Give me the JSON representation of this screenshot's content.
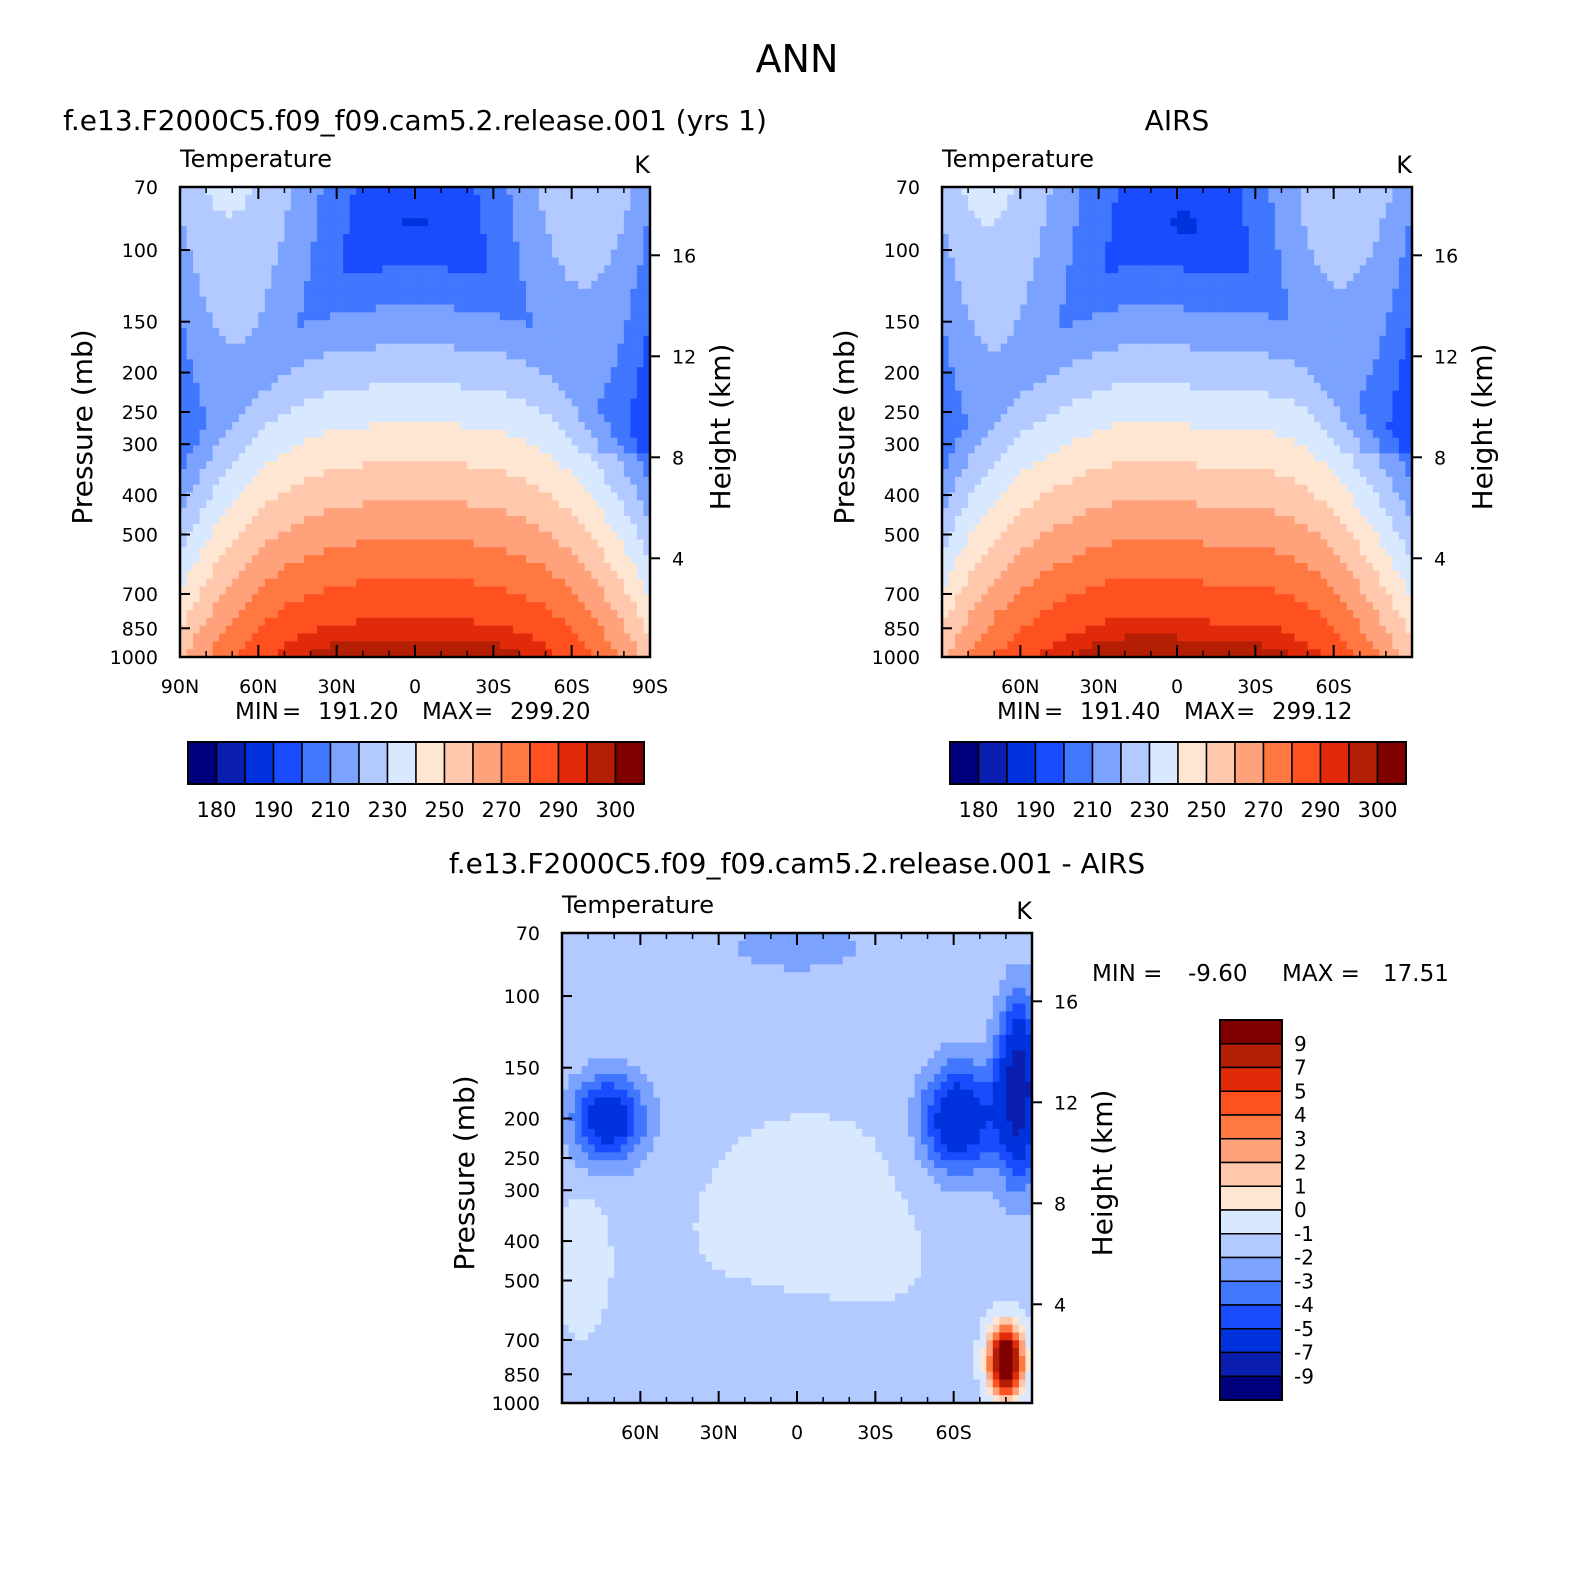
{
  "figure": {
    "title": "ANN"
  },
  "chart_data": [
    {
      "type": "heatmap",
      "panel_title": "f.e13.F2000C5.f09_f09.cam5.2.release.001 (yrs 1)",
      "variable": "Temperature",
      "units": "K",
      "ylabel": "Pressure (mb)",
      "ylabel_right": "Height (km)",
      "y_ticks": [
        "70",
        "100",
        "150",
        "200",
        "250",
        "300",
        "400",
        "500",
        "700",
        "850",
        "1000"
      ],
      "y_right_ticks": [
        "16",
        "12",
        "8",
        "4"
      ],
      "x_ticks": [
        "90N",
        "60N",
        "30N",
        "0",
        "30S",
        "60S",
        "90S"
      ],
      "min_label": "MIN",
      "min": "191.20",
      "max_label": "MAX",
      "max": "299.20",
      "contour_levels": [
        180,
        185,
        190,
        200,
        210,
        220,
        230,
        240,
        250,
        260,
        270,
        280,
        290,
        295,
        300
      ],
      "colorbar_labels": [
        "180",
        "190",
        "210",
        "230",
        "250",
        "270",
        "290",
        "300"
      ]
    },
    {
      "type": "heatmap",
      "panel_title": "AIRS",
      "variable": "Temperature",
      "units": "K",
      "ylabel": "Pressure (mb)",
      "ylabel_right": "Height (km)",
      "y_ticks": [
        "70",
        "100",
        "150",
        "200",
        "250",
        "300",
        "400",
        "500",
        "700",
        "850",
        "1000"
      ],
      "y_right_ticks": [
        "16",
        "12",
        "8",
        "4"
      ],
      "x_ticks": [
        "60N",
        "30N",
        "0",
        "30S",
        "60S"
      ],
      "min_label": "MIN",
      "min": "191.40",
      "max_label": "MAX",
      "max": "299.12",
      "contour_levels": [
        180,
        185,
        190,
        200,
        210,
        220,
        230,
        240,
        250,
        260,
        270,
        280,
        290,
        295,
        300
      ],
      "colorbar_labels": [
        "180",
        "190",
        "210",
        "230",
        "250",
        "270",
        "290",
        "300"
      ]
    },
    {
      "type": "heatmap",
      "panel_title": "f.e13.F2000C5.f09_f09.cam5.2.release.001 - AIRS",
      "variable": "Temperature",
      "units": "K",
      "ylabel": "Pressure (mb)",
      "ylabel_right": "Height (km)",
      "y_ticks": [
        "70",
        "100",
        "150",
        "200",
        "250",
        "300",
        "400",
        "500",
        "700",
        "850",
        "1000"
      ],
      "y_right_ticks": [
        "16",
        "12",
        "8",
        "4"
      ],
      "x_ticks": [
        "60N",
        "30N",
        "0",
        "30S",
        "60S"
      ],
      "min_label": "MIN =",
      "min": "-9.60",
      "max_label": "MAX =",
      "max": "17.51",
      "contour_levels": [
        -9,
        -7,
        -5,
        -4,
        -3,
        -2,
        -1,
        0,
        1,
        2,
        3,
        4,
        5,
        7,
        9
      ],
      "colorbar_labels": [
        "9",
        "7",
        "5",
        "4",
        "3",
        "2",
        "1",
        "0",
        "-1",
        "-2",
        "-3",
        "-4",
        "-5",
        "-7",
        "-9"
      ]
    }
  ],
  "colors": {
    "temperature_scale": [
      "#00007f",
      "#0a1fb0",
      "#0033dd",
      "#1a4cff",
      "#4177ff",
      "#7ba2ff",
      "#b2caff",
      "#d8e9ff",
      "#ffe6d2",
      "#ffc8ad",
      "#ffa27c",
      "#ff7842",
      "#ff5020",
      "#e02a0a",
      "#b41e05",
      "#800000"
    ],
    "difference_scale": [
      "#00007f",
      "#0a1fb0",
      "#0033dd",
      "#1a4cff",
      "#4177ff",
      "#7ba2ff",
      "#b2caff",
      "#d8e9ff",
      "#ffe6d2",
      "#ffc8ad",
      "#ffa27c",
      "#ff7842",
      "#ff5020",
      "#e02a0a",
      "#b41e05",
      "#800000"
    ]
  }
}
